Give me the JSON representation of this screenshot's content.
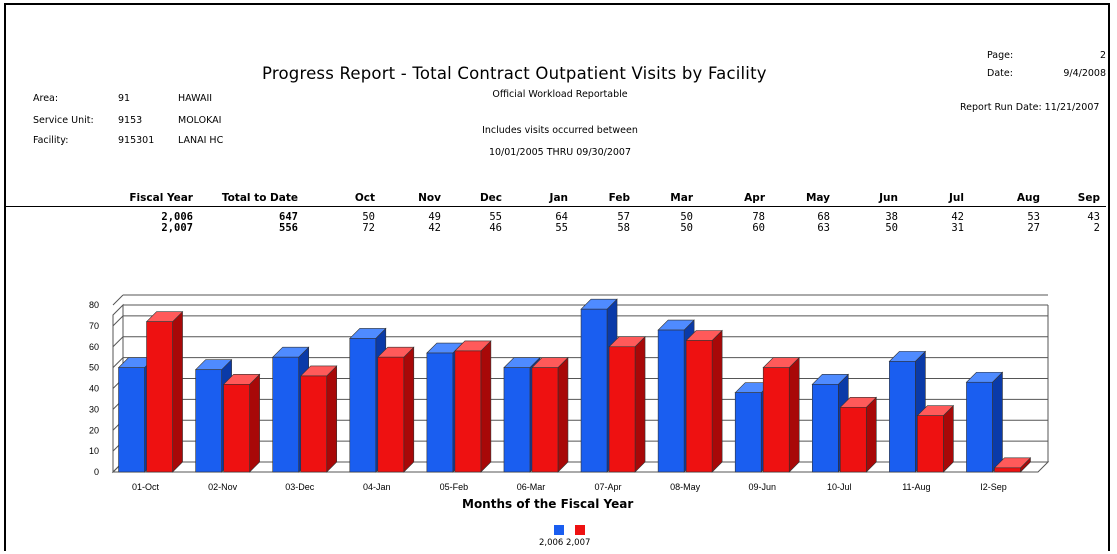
{
  "header": {
    "title": "Progress Report - Total Contract Outpatient Visits by Facility",
    "subtitle": "Official Workload Reportable",
    "includes_line": "Includes visits occurred between",
    "date_range": "10/01/2005  THRU  09/30/2007"
  },
  "left_info": {
    "area_label": "Area:",
    "area_code": "91",
    "area_name": "HAWAII",
    "su_label": "Service Unit:",
    "su_code": "9153",
    "su_name": "MOLOKAI",
    "fac_label": "Facility:",
    "fac_code": "915301",
    "fac_name": "LANAI HC"
  },
  "right_info": {
    "page_label": "Page:",
    "page_value": "2",
    "date_label": "Date:",
    "date_value": "9/4/2008",
    "run_date": "Report Run Date: 11/21/2007"
  },
  "table": {
    "columns": [
      "Fiscal Year",
      "Total to Date",
      "Oct",
      "Nov",
      "Dec",
      "Jan",
      "Feb",
      "Mar",
      "Apr",
      "May",
      "Jun",
      "Jul",
      "Aug",
      "Sep"
    ],
    "rows": [
      [
        "2,006",
        "647",
        "50",
        "49",
        "55",
        "64",
        "57",
        "50",
        "78",
        "68",
        "38",
        "42",
        "53",
        "43"
      ],
      [
        "2,007",
        "556",
        "72",
        "42",
        "46",
        "55",
        "58",
        "50",
        "60",
        "63",
        "50",
        "31",
        "27",
        "2"
      ]
    ]
  },
  "chart_data": {
    "type": "bar",
    "categories": [
      "01-Oct",
      "02-Nov",
      "03-Dec",
      "04-Jan",
      "05-Feb",
      "06-Mar",
      "07-Apr",
      "08-May",
      "09-Jun",
      "10-Jul",
      "11-Aug",
      "I2-Sep"
    ],
    "series": [
      {
        "name": "2,006",
        "values": [
          50,
          49,
          55,
          64,
          57,
          50,
          78,
          68,
          38,
          42,
          53,
          43
        ],
        "color": "#1a5ef0"
      },
      {
        "name": "2,007",
        "values": [
          72,
          42,
          46,
          55,
          58,
          50,
          60,
          63,
          50,
          31,
          27,
          2
        ],
        "color": "#ee1111"
      }
    ],
    "xlabel": "Months of the Fiscal Year",
    "ylabel": "",
    "ylim": [
      0,
      80
    ],
    "yticks": [
      0,
      10,
      20,
      30,
      40,
      50,
      60,
      70,
      80
    ],
    "grid": true,
    "legend_position": "bottom-center",
    "style": "3d"
  }
}
